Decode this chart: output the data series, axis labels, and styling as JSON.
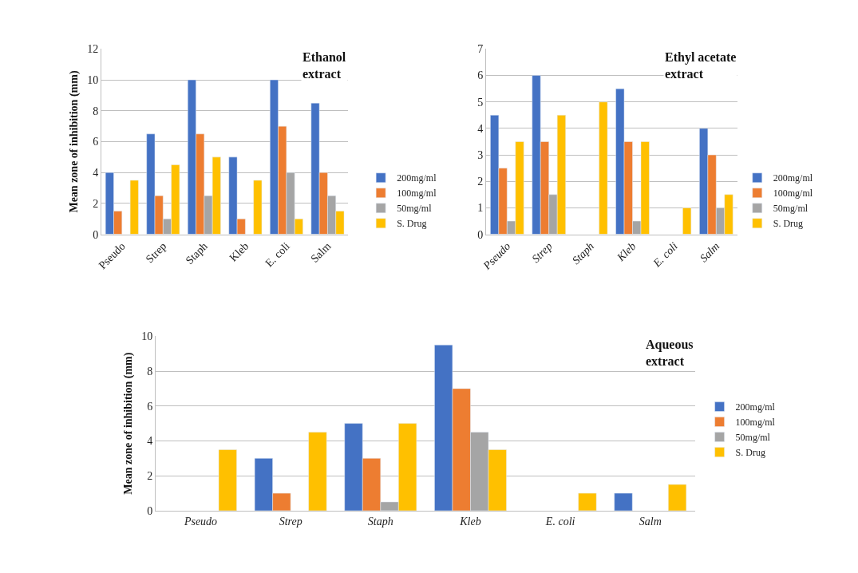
{
  "chart_data": [
    {
      "type": "bar",
      "title": "Ethanol extract",
      "ylabel": "Mean zone of inhibition (mm)",
      "categories": [
        "Pseudo",
        "Strep",
        "Staph",
        "Kleb",
        "E. coli",
        "Salm"
      ],
      "series": [
        {
          "name": "200mg/ml",
          "color": "#4472c4",
          "values": [
            4,
            6.5,
            10,
            5,
            10,
            8.5
          ]
        },
        {
          "name": "100mg/ml",
          "color": "#ed7d31",
          "values": [
            1.5,
            2.5,
            6.5,
            1,
            7,
            4
          ]
        },
        {
          "name": "50mg/ml",
          "color": "#a5a5a5",
          "values": [
            null,
            1,
            2.5,
            null,
            4,
            2.5
          ]
        },
        {
          "name": "S. Drug",
          "color": "#ffc000",
          "values": [
            3.5,
            4.5,
            5,
            3.5,
            1,
            1.5
          ]
        }
      ],
      "ylim": [
        0,
        12
      ],
      "yticks": [
        0,
        2,
        4,
        6,
        8,
        10,
        12
      ],
      "grid": "y",
      "legend": "right"
    },
    {
      "type": "bar",
      "title": "Ethyl acetate extract",
      "categories": [
        "Pseudo",
        "Strep",
        "Staph",
        "Kleb",
        "E. coli",
        "Salm"
      ],
      "series": [
        {
          "name": "200mg/ml",
          "color": "#4472c4",
          "values": [
            4.5,
            6,
            null,
            5.5,
            null,
            4
          ]
        },
        {
          "name": "100mg/ml",
          "color": "#ed7d31",
          "values": [
            2.5,
            3.5,
            null,
            3.5,
            null,
            3
          ]
        },
        {
          "name": "50mg/ml",
          "color": "#a5a5a5",
          "values": [
            0.5,
            1.5,
            null,
            0.5,
            null,
            1
          ]
        },
        {
          "name": "S. Drug",
          "color": "#ffc000",
          "values": [
            3.5,
            4.5,
            5,
            3.5,
            1,
            1.5
          ]
        }
      ],
      "ylim": [
        0,
        7
      ],
      "yticks": [
        0,
        1,
        2,
        3,
        4,
        5,
        6,
        7
      ],
      "grid": "y",
      "legend": "right"
    },
    {
      "type": "bar",
      "title": "Aqueous extract",
      "ylabel": "Mean zone of inhibition (mm)",
      "categories": [
        "Pseudo",
        "Strep",
        "Staph",
        "Kleb",
        "E. coli",
        "Salm"
      ],
      "series": [
        {
          "name": "200mg/ml",
          "color": "#4472c4",
          "values": [
            null,
            3,
            5,
            9.5,
            null,
            1
          ]
        },
        {
          "name": "100mg/ml",
          "color": "#ed7d31",
          "values": [
            null,
            1,
            3,
            7,
            null,
            null
          ]
        },
        {
          "name": "50mg/ml",
          "color": "#a5a5a5",
          "values": [
            null,
            null,
            0.5,
            4.5,
            null,
            null
          ]
        },
        {
          "name": "S. Drug",
          "color": "#ffc000",
          "values": [
            3.5,
            4.5,
            5,
            3.5,
            1,
            1.5
          ]
        }
      ],
      "ylim": [
        0,
        10
      ],
      "yticks": [
        0,
        2,
        4,
        6,
        8,
        10
      ],
      "grid": "y",
      "legend": "right"
    }
  ]
}
